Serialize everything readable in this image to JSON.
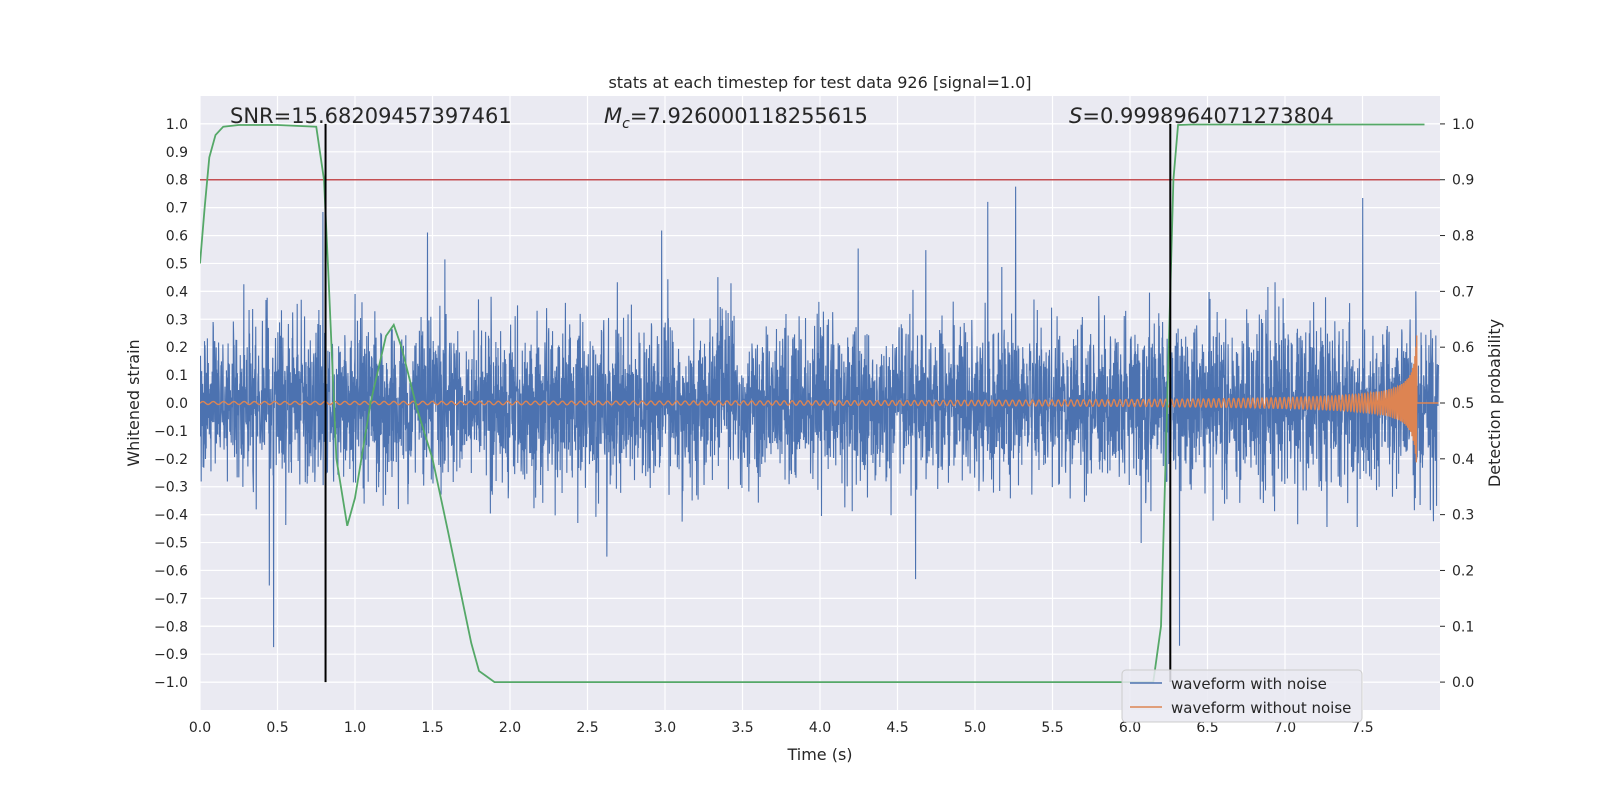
{
  "chart_data": {
    "type": "line",
    "title": "stats at each timestep for test data 926 [signal=1.0]",
    "xlabel": "Time (s)",
    "ylabel": "Whitened strain",
    "y2label": "Detection probability",
    "xlim": [
      0.0,
      8.0
    ],
    "ylim": [
      -1.1,
      1.1
    ],
    "y2lim": [
      -0.05,
      1.05
    ],
    "x_ticks": [
      "0.0",
      "0.5",
      "1.0",
      "1.5",
      "2.0",
      "2.5",
      "3.0",
      "3.5",
      "4.0",
      "4.5",
      "5.0",
      "5.5",
      "6.0",
      "6.5",
      "7.0",
      "7.5"
    ],
    "y_ticks": [
      "−1.0",
      "−0.9",
      "−0.8",
      "−0.7",
      "−0.6",
      "−0.5",
      "−0.4",
      "−0.3",
      "−0.2",
      "−0.1",
      "0.0",
      "0.1",
      "0.2",
      "0.3",
      "0.4",
      "0.5",
      "0.6",
      "0.7",
      "0.8",
      "0.9",
      "1.0"
    ],
    "y2_ticks": [
      "0.0",
      "0.1",
      "0.2",
      "0.3",
      "0.4",
      "0.5",
      "0.6",
      "0.7",
      "0.8",
      "0.9",
      "1.0"
    ],
    "grid": true,
    "legend_position": "lower-right",
    "annotations": {
      "snr": "SNR=15.68209457397461",
      "mc_symbol": "M",
      "mc_sub": "c",
      "mc_value": "=7.926000118255615",
      "s_symbol": "S",
      "s_value": "=0.9998964071273804"
    },
    "threshold": {
      "axis": "y2",
      "value": 0.9,
      "color": "#c44e52"
    },
    "vlines": [
      0.81,
      6.26
    ],
    "series": [
      {
        "name": "waveform with noise",
        "color": "#4c72b0",
        "noise_std": 0.14,
        "duration": 7.99
      },
      {
        "name": "waveform without noise",
        "color": "#dd8452",
        "chirp_end": 7.85,
        "merger_amplitude": 0.42
      },
      {
        "name": "",
        "axis": "y2",
        "color": "#55a868",
        "x": [
          0.0,
          0.03,
          0.06,
          0.1,
          0.15,
          0.25,
          0.5,
          0.75,
          0.8,
          0.83,
          0.88,
          0.95,
          1.0,
          1.1,
          1.2,
          1.25,
          1.3,
          1.4,
          1.5,
          1.6,
          1.75,
          1.8,
          1.85,
          1.9,
          2.0,
          3.0,
          4.0,
          5.0,
          6.0,
          6.15,
          6.2,
          6.25,
          6.28,
          6.31,
          6.4,
          7.0,
          7.5,
          7.9
        ],
        "y": [
          0.75,
          0.85,
          0.94,
          0.98,
          0.995,
          0.998,
          0.998,
          0.995,
          0.9,
          0.72,
          0.4,
          0.28,
          0.33,
          0.5,
          0.62,
          0.64,
          0.6,
          0.49,
          0.4,
          0.27,
          0.07,
          0.02,
          0.01,
          0.0,
          0.0,
          0.0,
          0.0,
          0.0,
          0.0,
          0.0,
          0.1,
          0.6,
          0.9,
          0.998,
          0.999,
          0.999,
          0.999,
          0.999
        ]
      }
    ]
  }
}
